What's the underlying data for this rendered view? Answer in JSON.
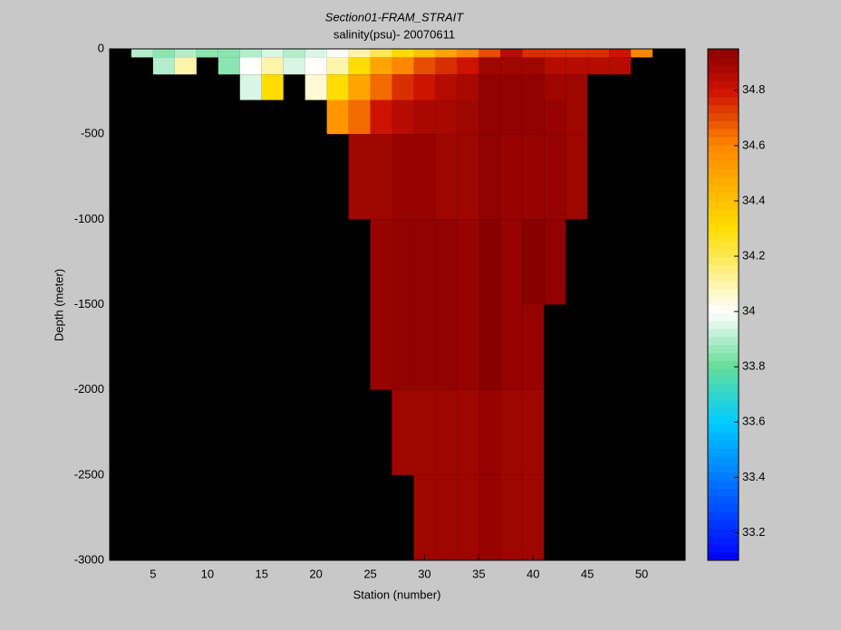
{
  "chart_data": {
    "type": "heatmap",
    "title": "Section01-FRAM_STRAIT",
    "subtitle": "salinity(psu)- 20070611",
    "x_label": "Station (number)",
    "y_label": "Depth (meter)",
    "xlim": [
      1,
      54
    ],
    "xticks": [
      5,
      10,
      15,
      20,
      25,
      30,
      35,
      40,
      45,
      50
    ],
    "ylim": [
      -3000,
      0
    ],
    "yticks": [
      0,
      -500,
      -1000,
      -1500,
      -2000,
      -2500,
      -3000
    ],
    "xbins": [
      3,
      5,
      7,
      9,
      11,
      13,
      15,
      17,
      19,
      21,
      23,
      25,
      27,
      29,
      31,
      33,
      35,
      37,
      39,
      41,
      43,
      45,
      47,
      49,
      51
    ],
    "ybins": [
      0,
      -50,
      -150,
      -300,
      -500,
      -1000,
      -1500,
      -2000,
      -2500,
      -3000
    ],
    "values": [
      [
        33.9,
        33.85,
        33.9,
        33.85,
        33.85,
        33.9,
        33.95,
        33.9,
        33.95,
        34.0,
        34.1,
        34.2,
        34.3,
        34.4,
        34.5,
        34.6,
        34.7,
        34.85,
        34.75,
        34.75,
        34.75,
        34.75,
        34.8,
        34.6
      ],
      [
        null,
        33.9,
        34.1,
        null,
        33.85,
        34.0,
        34.1,
        33.95,
        34.0,
        34.1,
        34.3,
        34.5,
        34.6,
        34.7,
        34.75,
        34.8,
        34.9,
        34.9,
        34.9,
        34.85,
        34.85,
        34.85,
        34.85,
        null
      ],
      [
        null,
        null,
        null,
        null,
        null,
        33.95,
        34.3,
        null,
        34.05,
        34.3,
        34.5,
        34.65,
        34.75,
        34.8,
        34.85,
        34.88,
        34.93,
        34.93,
        34.93,
        34.9,
        34.9,
        null,
        null,
        null
      ],
      [
        null,
        null,
        null,
        null,
        null,
        null,
        null,
        null,
        null,
        34.55,
        34.65,
        34.8,
        34.85,
        34.88,
        34.88,
        34.9,
        34.93,
        34.93,
        34.93,
        34.92,
        34.9,
        null,
        null,
        null
      ],
      [
        null,
        null,
        null,
        null,
        null,
        null,
        null,
        null,
        null,
        null,
        34.9,
        34.9,
        34.92,
        34.92,
        34.9,
        34.9,
        34.93,
        34.92,
        34.92,
        34.92,
        34.9,
        null,
        null,
        null
      ],
      [
        null,
        null,
        null,
        null,
        null,
        null,
        null,
        null,
        null,
        null,
        null,
        34.92,
        34.93,
        34.93,
        34.93,
        34.92,
        34.95,
        34.92,
        34.95,
        34.93,
        null,
        null,
        null,
        null
      ],
      [
        null,
        null,
        null,
        null,
        null,
        null,
        null,
        null,
        null,
        null,
        null,
        34.92,
        34.93,
        34.93,
        34.93,
        34.92,
        34.95,
        34.92,
        34.92,
        null,
        null,
        null,
        null,
        null
      ],
      [
        null,
        null,
        null,
        null,
        null,
        null,
        null,
        null,
        null,
        null,
        null,
        null,
        34.9,
        34.9,
        34.9,
        34.9,
        34.92,
        34.9,
        34.9,
        null,
        null,
        null,
        null,
        null
      ],
      [
        null,
        null,
        null,
        null,
        null,
        null,
        null,
        null,
        null,
        null,
        null,
        null,
        null,
        34.9,
        34.9,
        34.9,
        34.92,
        34.9,
        34.9,
        null,
        null,
        null,
        null,
        null
      ]
    ],
    "clim": [
      33.1,
      34.95
    ],
    "cticks": [
      33.2,
      33.4,
      33.6,
      33.8,
      34,
      34.2,
      34.4,
      34.6,
      34.8
    ]
  }
}
